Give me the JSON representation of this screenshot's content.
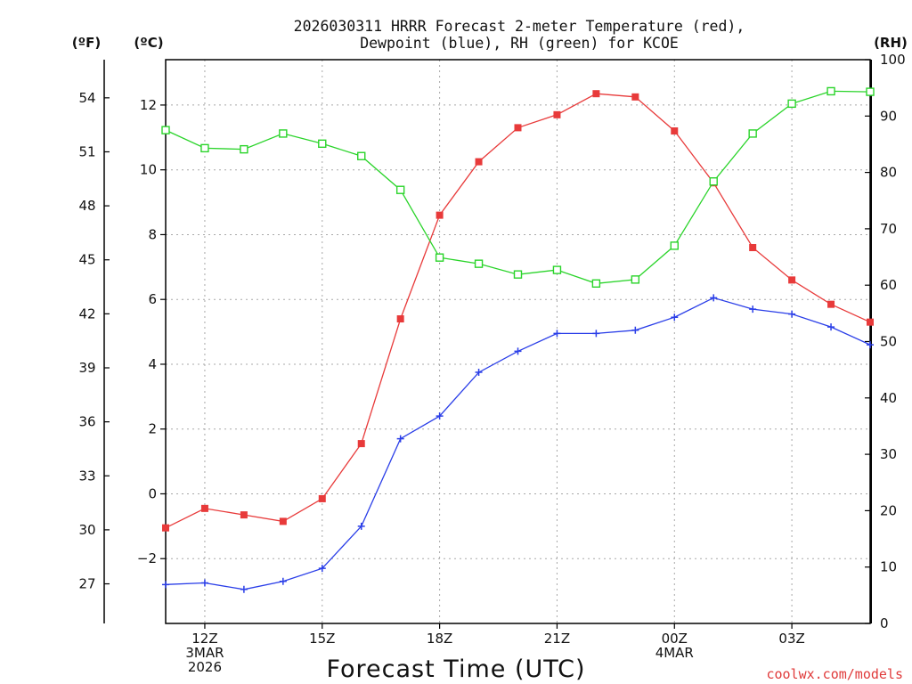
{
  "chart_data": {
    "type": "line",
    "title_line1": "2026030311 HRRR Forecast 2-meter Temperature (red),",
    "title_line2": "Dewpoint (blue), RH (green) for KCOE",
    "xlabel": "Forecast Time (UTC)",
    "credit": "coolwx.com/models",
    "units": {
      "fahrenheit": "(ºF)",
      "celsius": "(ºC)",
      "rh": "(RH)"
    },
    "x_hours": [
      11,
      12,
      13,
      14,
      15,
      16,
      17,
      18,
      19,
      20,
      21,
      22,
      23,
      24,
      25,
      26,
      27,
      28,
      29
    ],
    "x_range": [
      11,
      29
    ],
    "celsius_axis": {
      "range": [
        -4.0,
        13.4
      ],
      "ticks": [
        -2,
        0,
        2,
        4,
        6,
        8,
        10,
        12
      ],
      "tick_labels": [
        "−2",
        "0",
        "2",
        "4",
        "6",
        "8",
        "10",
        "12"
      ]
    },
    "fahrenheit_axis": {
      "ticks": [
        27,
        30,
        33,
        36,
        39,
        42,
        45,
        48,
        51,
        54
      ],
      "tick_labels": [
        "27",
        "30",
        "33",
        "36",
        "39",
        "42",
        "45",
        "48",
        "51",
        "54"
      ]
    },
    "rh_axis": {
      "range": [
        0,
        100
      ],
      "ticks": [
        0,
        10,
        20,
        30,
        40,
        50,
        60,
        70,
        80,
        90,
        100
      ],
      "tick_labels": [
        "0",
        "10",
        "20",
        "30",
        "40",
        "50",
        "60",
        "70",
        "80",
        "90",
        "100"
      ]
    },
    "x_ticks": [
      {
        "hour": 12,
        "lines": [
          "12Z",
          "3MAR",
          "2026"
        ]
      },
      {
        "hour": 15,
        "lines": [
          "15Z"
        ]
      },
      {
        "hour": 18,
        "lines": [
          "18Z"
        ]
      },
      {
        "hour": 21,
        "lines": [
          "21Z"
        ]
      },
      {
        "hour": 24,
        "lines": [
          "00Z",
          "4MAR"
        ]
      },
      {
        "hour": 27,
        "lines": [
          "03Z"
        ]
      }
    ],
    "series": [
      {
        "name": "Temperature",
        "axis": "celsius",
        "color": "#e83a3a",
        "marker": "filled-square",
        "values": [
          -1.05,
          -0.45,
          -0.65,
          -0.85,
          -0.15,
          1.55,
          5.4,
          8.6,
          10.25,
          11.3,
          11.7,
          12.35,
          12.25,
          11.2,
          9.6,
          7.6,
          6.6,
          5.85,
          5.3
        ]
      },
      {
        "name": "Dewpoint",
        "axis": "celsius",
        "color": "#2a3ee8",
        "marker": "plus",
        "values": [
          -2.8,
          -2.75,
          -2.95,
          -2.7,
          -2.3,
          -1.0,
          1.7,
          2.4,
          3.75,
          4.4,
          4.95,
          4.95,
          5.05,
          5.45,
          6.05,
          5.7,
          5.55,
          5.15,
          4.6
        ]
      },
      {
        "name": "RH",
        "axis": "rh",
        "color": "#2ad42a",
        "marker": "open-square",
        "values": [
          87.5,
          84.3,
          84.1,
          86.9,
          85.1,
          82.9,
          76.9,
          64.9,
          63.8,
          61.9,
          62.7,
          60.3,
          61.0,
          67.0,
          78.4,
          86.9,
          92.2,
          94.4,
          94.3
        ]
      }
    ]
  }
}
